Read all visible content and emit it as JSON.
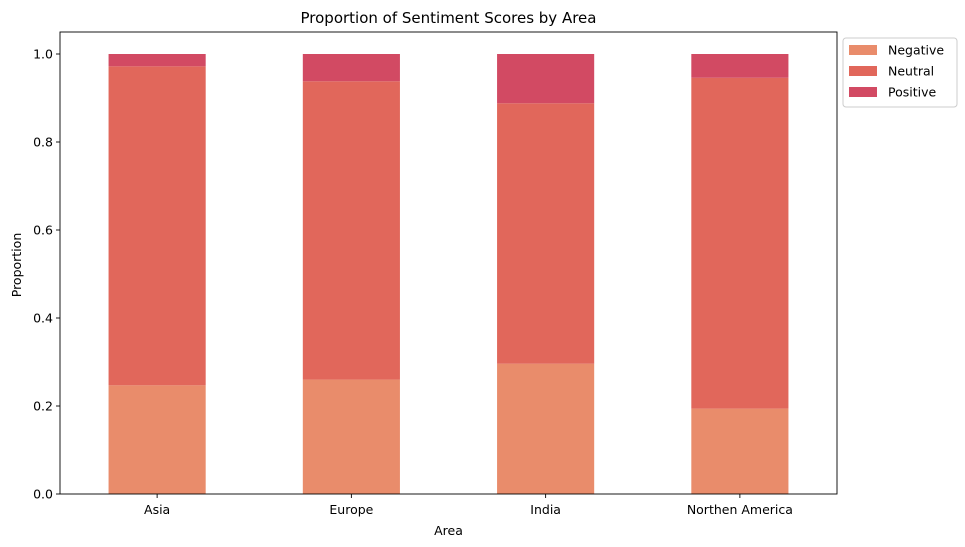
{
  "chart_data": {
    "type": "bar",
    "stacked": true,
    "title": "Proportion of Sentiment Scores by Area",
    "xlabel": "Area",
    "ylabel": "Proportion",
    "ylim": [
      0,
      1.05
    ],
    "yticks": [
      "0.0",
      "0.2",
      "0.4",
      "0.6",
      "0.8",
      "1.0"
    ],
    "grid": false,
    "legend_position": "outside-top-right",
    "categories": [
      "Asia",
      "Europe",
      "India",
      "Northen America"
    ],
    "series": [
      {
        "name": "Negative",
        "color": "#E98C6B",
        "values": [
          0.247,
          0.26,
          0.296,
          0.194
        ]
      },
      {
        "name": "Neutral",
        "color": "#E1675B",
        "values": [
          0.725,
          0.678,
          0.592,
          0.752
        ]
      },
      {
        "name": "Positive",
        "color": "#D24A63",
        "values": [
          0.028,
          0.062,
          0.112,
          0.054
        ]
      }
    ]
  }
}
